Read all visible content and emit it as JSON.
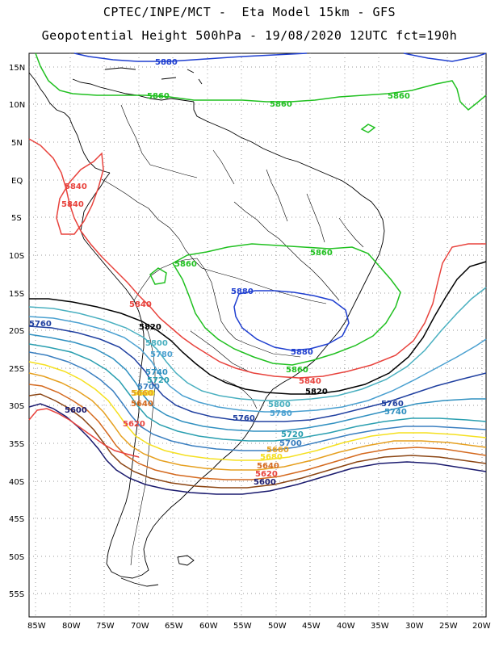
{
  "header": {
    "title_line1": "CPTEC/INPE/MCT -  Eta Model 15km - GFS",
    "title_line2": "Geopotential Height 500hPa - 19/08/2020 12UTC fct=190h"
  },
  "axes": {
    "lat_labels": [
      "15N",
      "10N",
      "5N",
      "EQ",
      "5S",
      "10S",
      "15S",
      "20S",
      "25S",
      "30S",
      "35S",
      "40S",
      "45S",
      "50S",
      "55S"
    ],
    "lon_labels": [
      "85W",
      "80W",
      "75W",
      "70W",
      "65W",
      "60W",
      "55W",
      "50W",
      "45W",
      "40W",
      "35W",
      "30W",
      "25W",
      "20W"
    ]
  },
  "colors": {
    "5600": "#1a1a6e",
    "5620": "#8b4513",
    "5640": "#d4691e",
    "5660": "#e6a020",
    "5680": "#f5e020",
    "5700": "#3a7fc0",
    "5720": "#2a9fb0",
    "5740": "#3090c0",
    "5760": "#2040a0",
    "5780": "#4aa0d0",
    "5800": "#4ab0c0",
    "5820": "#000000",
    "5840": "#e8433d",
    "5860": "#20c020",
    "5880": "#1f3fd0"
  },
  "contour_labels": [
    {
      "text": "5880",
      "color": "#1f3fd0"
    },
    {
      "text": "5860",
      "color": "#20c020"
    },
    {
      "text": "5860",
      "color": "#20c020"
    },
    {
      "text": "5860",
      "color": "#20c020"
    },
    {
      "text": "5840",
      "color": "#e8433d"
    },
    {
      "text": "5840",
      "color": "#e8433d"
    },
    {
      "text": "5860",
      "color": "#20c020"
    },
    {
      "text": "5860",
      "color": "#20c020"
    },
    {
      "text": "5880",
      "color": "#1f3fd0"
    },
    {
      "text": "5840",
      "color": "#e8433d"
    },
    {
      "text": "5820",
      "color": "#000000"
    },
    {
      "text": "5760",
      "color": "#2040a0"
    },
    {
      "text": "5800",
      "color": "#4ab0c0"
    },
    {
      "text": "5780",
      "color": "#4aa0d0"
    },
    {
      "text": "5740",
      "color": "#3090c0"
    },
    {
      "text": "5720",
      "color": "#2a9fb0"
    },
    {
      "text": "5700",
      "color": "#3a7fc0"
    },
    {
      "text": "5680",
      "color": "#f5e020"
    },
    {
      "text": "5660",
      "color": "#e6a020"
    },
    {
      "text": "5640",
      "color": "#d4691e"
    },
    {
      "text": "5600",
      "color": "#1a1a6e"
    },
    {
      "text": "5620",
      "color": "#8b4513"
    },
    {
      "text": "5880",
      "color": "#1f3fd0"
    },
    {
      "text": "5860",
      "color": "#20c020"
    },
    {
      "text": "5840",
      "color": "#e8433d"
    },
    {
      "text": "5820",
      "color": "#000000"
    },
    {
      "text": "5800",
      "color": "#4ab0c0"
    },
    {
      "text": "5780",
      "color": "#4aa0d0"
    },
    {
      "text": "5760",
      "color": "#2040a0"
    },
    {
      "text": "5760",
      "color": "#2040a0"
    },
    {
      "text": "5740",
      "color": "#3090c0"
    },
    {
      "text": "5720",
      "color": "#2a9fb0"
    },
    {
      "text": "5700",
      "color": "#3a7fc0"
    },
    {
      "text": "5680",
      "color": "#f5e020"
    },
    {
      "text": "5660",
      "color": "#e6a020"
    },
    {
      "text": "5640",
      "color": "#d4691e"
    },
    {
      "text": "5620",
      "color": "#8b4513"
    },
    {
      "text": "5600",
      "color": "#1a1a6e"
    }
  ]
}
